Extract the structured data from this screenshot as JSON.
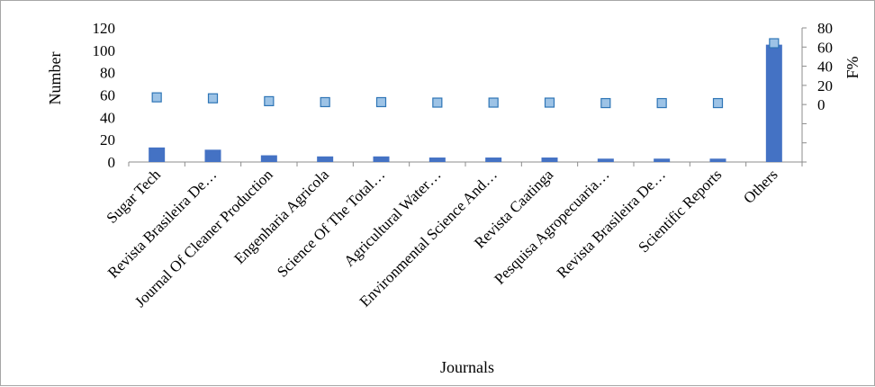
{
  "chart_data": {
    "type": "bar",
    "categories": [
      "Sugar Tech",
      "Revista Brasileira De…",
      "Journal Of Cleaner Production",
      "Engenharia Agricola",
      "Science Of The Total…",
      "Agricultural Water…",
      "Environmental Science And…",
      "Revista Caatinga",
      "Pesquisa Agropecuaria…",
      "Revista Brasileira De…",
      "Scientific Reports",
      "Others"
    ],
    "series": [
      {
        "type": "bar",
        "axis": "left",
        "values": [
          13,
          11,
          6,
          5,
          5,
          4,
          4,
          4,
          3,
          3,
          3,
          105
        ]
      },
      {
        "type": "scatter",
        "axis": "right",
        "values": [
          7.5,
          6.5,
          3.5,
          2.5,
          2.5,
          2.0,
          2.0,
          2.0,
          1.5,
          1.5,
          1.5,
          64
        ]
      }
    ],
    "xlabel": "Journals",
    "ylabel": "Number",
    "y2label": "F%",
    "ylim": [
      0,
      120
    ],
    "yticks": [
      "0",
      "20",
      "40",
      "60",
      "80",
      "100",
      "120"
    ],
    "y2lim": [
      -60,
      80
    ],
    "y2ticks": [
      "0",
      "20",
      "40",
      "60",
      "80"
    ],
    "grid": false,
    "legend": "none",
    "colors": {
      "bar": "#4472c4",
      "marker_fill": "#9dc3e6",
      "marker_stroke": "#2e75b6",
      "axis": "#8c8c8c"
    }
  }
}
